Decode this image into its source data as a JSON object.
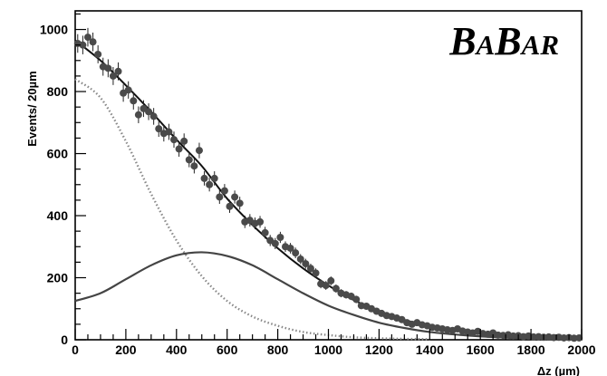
{
  "chart_data": {
    "type": "scatter",
    "title": "",
    "xlabel": "Δz (µm)",
    "ylabel": "Events/ 20µm",
    "xlim": [
      0,
      2000
    ],
    "ylim": [
      0,
      1060
    ],
    "xticks": [
      0,
      200,
      400,
      600,
      800,
      1000,
      1200,
      1400,
      1600,
      1800,
      2000
    ],
    "yticks": [
      0,
      200,
      400,
      600,
      800,
      1000
    ],
    "grid": false,
    "logo": {
      "big1": "B",
      "small1": "A",
      "big2": "B",
      "small2": "AR"
    },
    "series": [
      {
        "style": "points-with-error-bars",
        "color": "#4a4a4a",
        "x": [
          10,
          30,
          50,
          70,
          90,
          110,
          130,
          150,
          170,
          190,
          210,
          230,
          250,
          270,
          290,
          310,
          330,
          350,
          370,
          390,
          410,
          430,
          450,
          470,
          490,
          510,
          530,
          550,
          570,
          590,
          610,
          630,
          650,
          670,
          690,
          710,
          730,
          750,
          770,
          790,
          810,
          830,
          850,
          870,
          890,
          910,
          930,
          950,
          970,
          990,
          1010,
          1030,
          1050,
          1070,
          1090,
          1110,
          1130,
          1150,
          1170,
          1190,
          1210,
          1230,
          1250,
          1270,
          1290,
          1310,
          1330,
          1350,
          1370,
          1390,
          1410,
          1430,
          1450,
          1470,
          1490,
          1510,
          1530,
          1550,
          1570,
          1590,
          1610,
          1630,
          1650,
          1670,
          1690,
          1710,
          1730,
          1750,
          1770,
          1790,
          1810,
          1830,
          1850,
          1870,
          1890,
          1910,
          1930,
          1950,
          1970,
          1990
        ],
        "y": [
          955,
          950,
          975,
          960,
          920,
          880,
          875,
          850,
          865,
          795,
          805,
          770,
          725,
          745,
          735,
          720,
          680,
          665,
          670,
          645,
          615,
          640,
          580,
          560,
          610,
          520,
          500,
          520,
          460,
          480,
          430,
          460,
          440,
          380,
          385,
          375,
          380,
          345,
          320,
          310,
          330,
          300,
          295,
          280,
          260,
          245,
          230,
          215,
          180,
          175,
          190,
          165,
          150,
          145,
          140,
          130,
          110,
          108,
          100,
          92,
          85,
          78,
          75,
          70,
          65,
          55,
          50,
          55,
          48,
          45,
          40,
          38,
          35,
          32,
          30,
          35,
          28,
          25,
          22,
          27,
          20,
          18,
          22,
          15,
          14,
          16,
          12,
          13,
          10,
          12,
          9,
          10,
          8,
          9,
          7,
          8,
          6,
          7,
          5,
          6
        ],
        "yerr": [
          30,
          30,
          30,
          30,
          29,
          29,
          29,
          29,
          29,
          28,
          28,
          28,
          27,
          27,
          27,
          27,
          26,
          26,
          26,
          26,
          25,
          25,
          24,
          24,
          25,
          23,
          22,
          23,
          22,
          22,
          21,
          21,
          21,
          20,
          20,
          19,
          19,
          19,
          18,
          18,
          18,
          17,
          17,
          17,
          16,
          16,
          15,
          15,
          14,
          14,
          14,
          13,
          13,
          12,
          12,
          12,
          11,
          11,
          10,
          10,
          10,
          9,
          9,
          9,
          8,
          8,
          7,
          8,
          7,
          7,
          7,
          7,
          6,
          6,
          6,
          6,
          6,
          5,
          5,
          6,
          5,
          5,
          5,
          4,
          4,
          4,
          4,
          4,
          3,
          4,
          3,
          3,
          3,
          3,
          3,
          3,
          3,
          3,
          3,
          3
        ]
      },
      {
        "style": "solid-thick",
        "color": "#111111",
        "x": [
          0,
          100,
          200,
          300,
          400,
          500,
          600,
          700,
          800,
          900,
          1000,
          1100,
          1200,
          1300,
          1400,
          1500,
          1600,
          1700,
          1800,
          1900,
          2000
        ],
        "y": [
          965,
          900,
          820,
          735,
          645,
          560,
          455,
          370,
          295,
          230,
          175,
          128,
          92,
          64,
          45,
          31,
          21,
          14,
          9,
          6,
          4
        ]
      },
      {
        "style": "dotted",
        "color": "#888888",
        "x": [
          0,
          100,
          200,
          300,
          400,
          500,
          600,
          700,
          800,
          900,
          1000,
          1100,
          1200,
          1300,
          1400
        ],
        "y": [
          840,
          780,
          640,
          470,
          320,
          205,
          125,
          75,
          45,
          25,
          15,
          8,
          5,
          3,
          2
        ]
      },
      {
        "style": "solid",
        "color": "#444444",
        "x": [
          0,
          100,
          200,
          300,
          400,
          500,
          600,
          700,
          800,
          900,
          1000,
          1100,
          1200,
          1300,
          1400,
          1500,
          1600,
          1700,
          1800,
          1900,
          2000
        ],
        "y": [
          125,
          150,
          195,
          240,
          272,
          282,
          270,
          240,
          195,
          150,
          110,
          80,
          55,
          38,
          25,
          17,
          11,
          7,
          4,
          3,
          2
        ]
      }
    ]
  }
}
